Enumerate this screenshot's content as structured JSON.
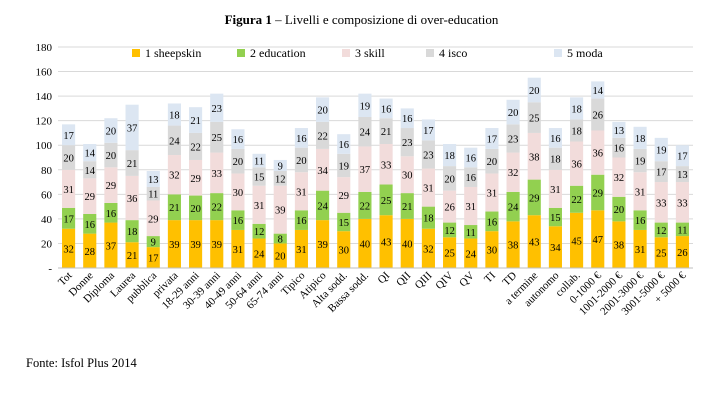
{
  "figure": {
    "title_bold": "Figura 1",
    "title_rest": " – Livelli e composizione di over-education",
    "source": "Fonte: Isfol Plus 2014"
  },
  "chart_data": {
    "type": "bar",
    "stacked": true,
    "title": "Figura 1 – Livelli e composizione di over-education",
    "ylim": [
      0,
      180
    ],
    "yticks": [
      0,
      20,
      40,
      60,
      80,
      100,
      120,
      140,
      160,
      180
    ],
    "ytick_labels": [
      "-",
      "20",
      "40",
      "60",
      "80",
      "100",
      "120",
      "140",
      "160",
      "180"
    ],
    "grid": true,
    "legend_position": "top",
    "categories": [
      "Tot",
      "Donne",
      "Diploma",
      "Laurea",
      "pubblica",
      "privata",
      "18-29 anni",
      "30-39 anni",
      "40-49 anni",
      "50-64 anni",
      "65-74 anni",
      "Tipico",
      "Atipico",
      "Alta sodd.",
      "Bassa sodd.",
      "QI",
      "QII",
      "QIII",
      "QIV",
      "QV",
      "TI",
      "TD",
      "a termine",
      "autonomo",
      "collab.",
      "0-1000 €",
      "1001-2000 €",
      "2001-3000 €",
      "3001-5000 €",
      "+ 5000 €"
    ],
    "series": [
      {
        "name": "1 sheepskin",
        "color": "#FFC000",
        "values": [
          32,
          28,
          37,
          21,
          17,
          39,
          39,
          39,
          31,
          24,
          20,
          31,
          39,
          30,
          40,
          43,
          40,
          32,
          25,
          24,
          30,
          38,
          43,
          34,
          45,
          47,
          38,
          31,
          25,
          26
        ]
      },
      {
        "name": "2 education",
        "color": "#92D050",
        "values": [
          17,
          16,
          16,
          18,
          9,
          21,
          20,
          22,
          16,
          12,
          8,
          16,
          24,
          15,
          22,
          25,
          21,
          18,
          12,
          11,
          16,
          24,
          29,
          15,
          22,
          29,
          20,
          16,
          12,
          11
        ]
      },
      {
        "name": "3 skill",
        "color": "#F2DCDB",
        "values": [
          31,
          29,
          29,
          36,
          29,
          32,
          29,
          33,
          30,
          31,
          39,
          31,
          34,
          29,
          37,
          33,
          30,
          31,
          26,
          31,
          31,
          32,
          38,
          31,
          36,
          36,
          32,
          31,
          33,
          33
        ]
      },
      {
        "name": "4 isco",
        "color": "#D9D9D9",
        "values": [
          20,
          14,
          20,
          21,
          11,
          24,
          22,
          25,
          20,
          15,
          12,
          20,
          22,
          19,
          24,
          21,
          23,
          23,
          20,
          16,
          20,
          23,
          25,
          18,
          18,
          26,
          16,
          19,
          17,
          13
        ]
      },
      {
        "name": "5 moda",
        "color": "#DCE6F2",
        "values": [
          17,
          14,
          20,
          37,
          13,
          18,
          21,
          23,
          16,
          11,
          9,
          16,
          20,
          16,
          19,
          16,
          16,
          17,
          18,
          16,
          17,
          20,
          20,
          16,
          18,
          14,
          13,
          18,
          19,
          17
        ]
      }
    ]
  }
}
